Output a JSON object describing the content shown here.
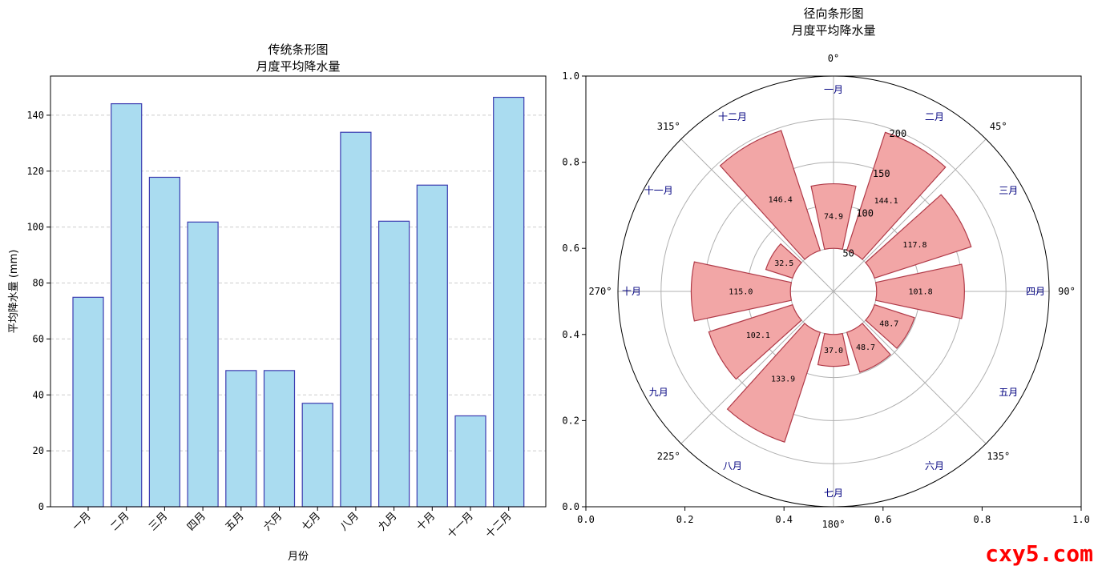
{
  "chart_data": [
    {
      "type": "bar",
      "title_line1": "传统条形图",
      "title_line2": "月度平均降水量",
      "xlabel": "月份",
      "ylabel": "平均降水量 (mm)",
      "categories": [
        "一月",
        "二月",
        "三月",
        "四月",
        "五月",
        "六月",
        "七月",
        "八月",
        "九月",
        "十月",
        "十一月",
        "十二月"
      ],
      "values": [
        74.9,
        144.1,
        117.8,
        101.8,
        48.7,
        48.7,
        37.0,
        133.9,
        102.1,
        115.0,
        32.5,
        146.4
      ],
      "ylim": [
        0,
        154
      ],
      "yticks": [
        0,
        20,
        40,
        60,
        80,
        100,
        120,
        140
      ],
      "grid": "y-dashed",
      "colors": {
        "fill": "#aadcf0",
        "edge": "#3b3bb0"
      }
    },
    {
      "type": "bar",
      "subtype": "polar",
      "title_line1": "径向条形图",
      "title_line2": "月度平均降水量",
      "categories": [
        "一月",
        "二月",
        "三月",
        "四月",
        "五月",
        "六月",
        "七月",
        "八月",
        "九月",
        "十月",
        "十一月",
        "十二月"
      ],
      "values": [
        74.9,
        144.1,
        117.8,
        101.8,
        48.7,
        48.7,
        37.0,
        133.9,
        102.1,
        115.0,
        32.5,
        146.4
      ],
      "value_labels": [
        "74.9",
        "144.1",
        "117.8",
        "101.8",
        "48.7",
        "48.7",
        "37.0",
        "133.9",
        "102.1",
        "115.0",
        "32.5",
        "146.4"
      ],
      "angle_ticks": [
        "0°",
        "45°",
        "90°",
        "135°",
        "180°",
        "225°",
        "270°",
        "315°"
      ],
      "radial_ticks": [
        50,
        100,
        150,
        200
      ],
      "radial_offset": 50,
      "rmax": 250,
      "direction": "clockwise from top",
      "frame_ticks": [
        "0.0",
        "0.2",
        "0.4",
        "0.6",
        "0.8",
        "1.0"
      ],
      "colors": {
        "fill": "#f2a6a6",
        "edge": "#b03a48"
      }
    }
  ],
  "watermark": "cxy5.com"
}
